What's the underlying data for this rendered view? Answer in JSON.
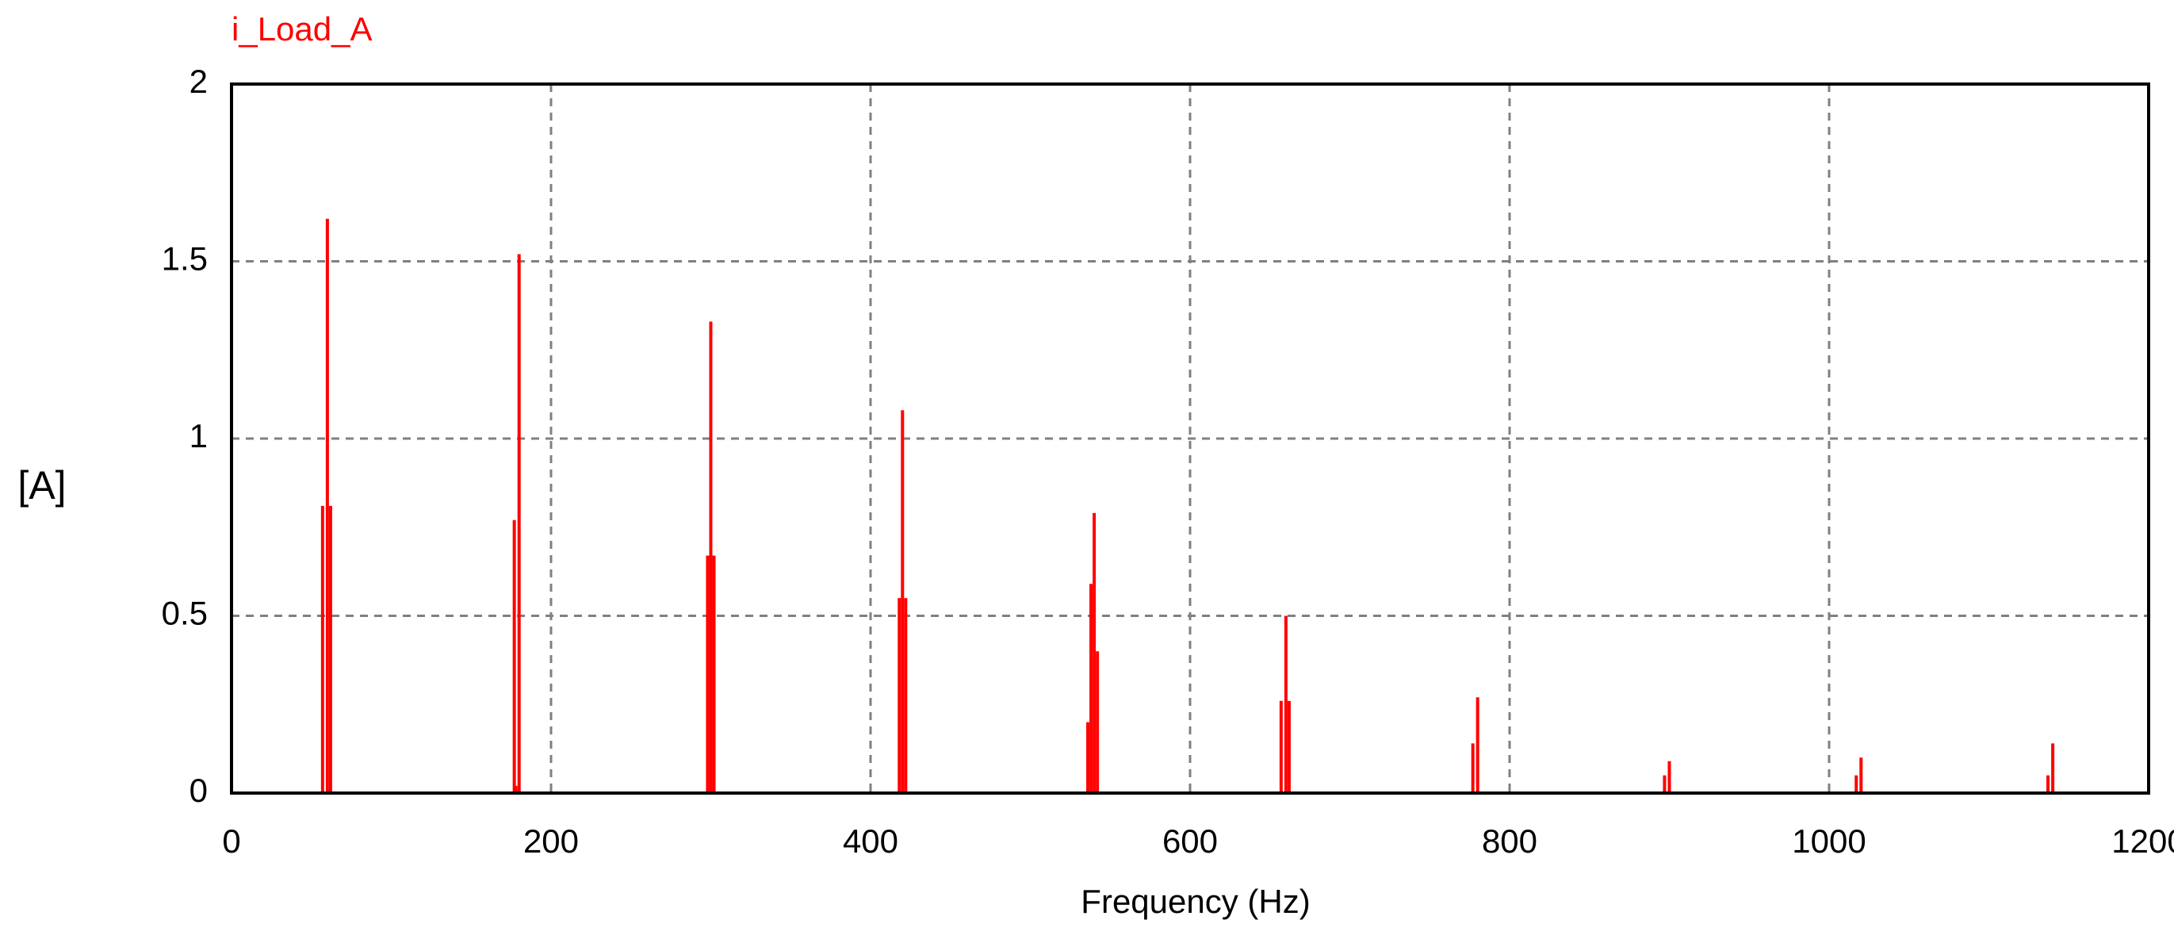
{
  "chart_data": {
    "type": "stem",
    "title": "i_Load_A",
    "x_label": "Frequency (Hz)",
    "y_label": "[A]",
    "xlim": [
      0,
      1200
    ],
    "ylim": [
      0,
      2
    ],
    "xticks": [
      0,
      200,
      400,
      600,
      800,
      1000,
      1200
    ],
    "yticks": [
      0,
      0.5,
      1,
      1.5,
      2
    ],
    "grid": true,
    "series": [
      {
        "name": "i_Load_A",
        "color": "#ff0000",
        "x": [
          57,
          60,
          62,
          177,
          178,
          180,
          298,
          300,
          302,
          418,
          420,
          422,
          536,
          538,
          540,
          542,
          657,
          660,
          662,
          777,
          780,
          897,
          900,
          1017,
          1020,
          1137,
          1140
        ],
        "values": [
          0.81,
          1.62,
          0.81,
          0.77,
          0.02,
          1.52,
          0.67,
          1.33,
          0.67,
          0.55,
          1.08,
          0.55,
          0.2,
          0.59,
          0.79,
          0.4,
          0.26,
          0.5,
          0.26,
          0.14,
          0.27,
          0.05,
          0.09,
          0.05,
          0.1,
          0.05,
          0.14
        ]
      }
    ]
  }
}
